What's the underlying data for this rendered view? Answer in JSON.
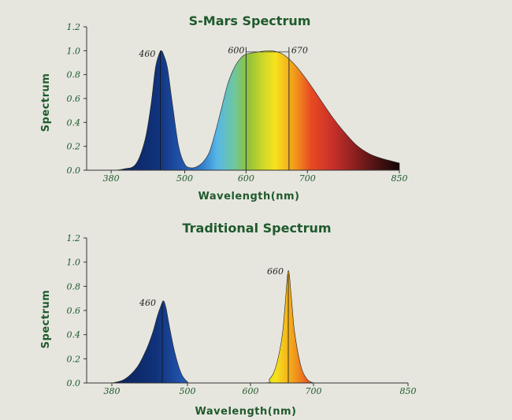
{
  "colors": {
    "text": "#1f5a2c",
    "background": "#e6e6df"
  },
  "chart_data": [
    {
      "type": "area",
      "title": "S-Mars Spectrum",
      "xlabel": "Wavelength(nm)",
      "ylabel": "Spectrum",
      "xlim": [
        340,
        850
      ],
      "ylim": [
        0,
        1.2
      ],
      "x_ticks": [
        "380",
        "500",
        "600",
        "700",
        "850"
      ],
      "y_ticks": [
        "0.0",
        "0.2",
        "0.4",
        "0.6",
        "0.8",
        "1.0",
        "1.2"
      ],
      "annotations": [
        "460",
        "600",
        "670"
      ],
      "series": [
        {
          "x": [
            340,
            380,
            400,
            420,
            435,
            445,
            452,
            458,
            462,
            466,
            472,
            480,
            490,
            500,
            510,
            520,
            530,
            540,
            550,
            560,
            570,
            580,
            590,
            600,
            620,
            640,
            660,
            680,
            700,
            720,
            740,
            760,
            780,
            800,
            820,
            850
          ],
          "y": [
            0.0,
            0.0,
            0.01,
            0.05,
            0.25,
            0.55,
            0.85,
            0.97,
            1.0,
            0.96,
            0.85,
            0.55,
            0.2,
            0.05,
            0.02,
            0.03,
            0.07,
            0.15,
            0.32,
            0.52,
            0.72,
            0.85,
            0.93,
            0.97,
            0.99,
            1.0,
            0.97,
            0.88,
            0.75,
            0.6,
            0.45,
            0.32,
            0.21,
            0.14,
            0.1,
            0.06
          ]
        }
      ]
    },
    {
      "type": "area",
      "title": "Traditional Spectrum",
      "xlabel": "Wavelength(nm)",
      "ylabel": "Spectrum",
      "xlim": [
        340,
        850
      ],
      "ylim": [
        0,
        1.2
      ],
      "x_ticks": [
        "380",
        "500",
        "600",
        "700",
        "850"
      ],
      "y_ticks": [
        "0.0",
        "0.2",
        "0.4",
        "0.6",
        "0.8",
        "1.0",
        "1.2"
      ],
      "annotations": [
        "460",
        "660"
      ],
      "series": [
        {
          "x": [
            380,
            400,
            420,
            435,
            445,
            452,
            458,
            462,
            466,
            472,
            480,
            490,
            500,
            510,
            620,
            630,
            640,
            650,
            655,
            660,
            665,
            670,
            680,
            690,
            700
          ],
          "y": [
            0.0,
            0.03,
            0.13,
            0.28,
            0.42,
            0.55,
            0.64,
            0.68,
            0.62,
            0.45,
            0.25,
            0.08,
            0.01,
            0.0,
            0.0,
            0.03,
            0.13,
            0.38,
            0.65,
            0.93,
            0.7,
            0.42,
            0.14,
            0.03,
            0.0
          ]
        }
      ]
    }
  ]
}
